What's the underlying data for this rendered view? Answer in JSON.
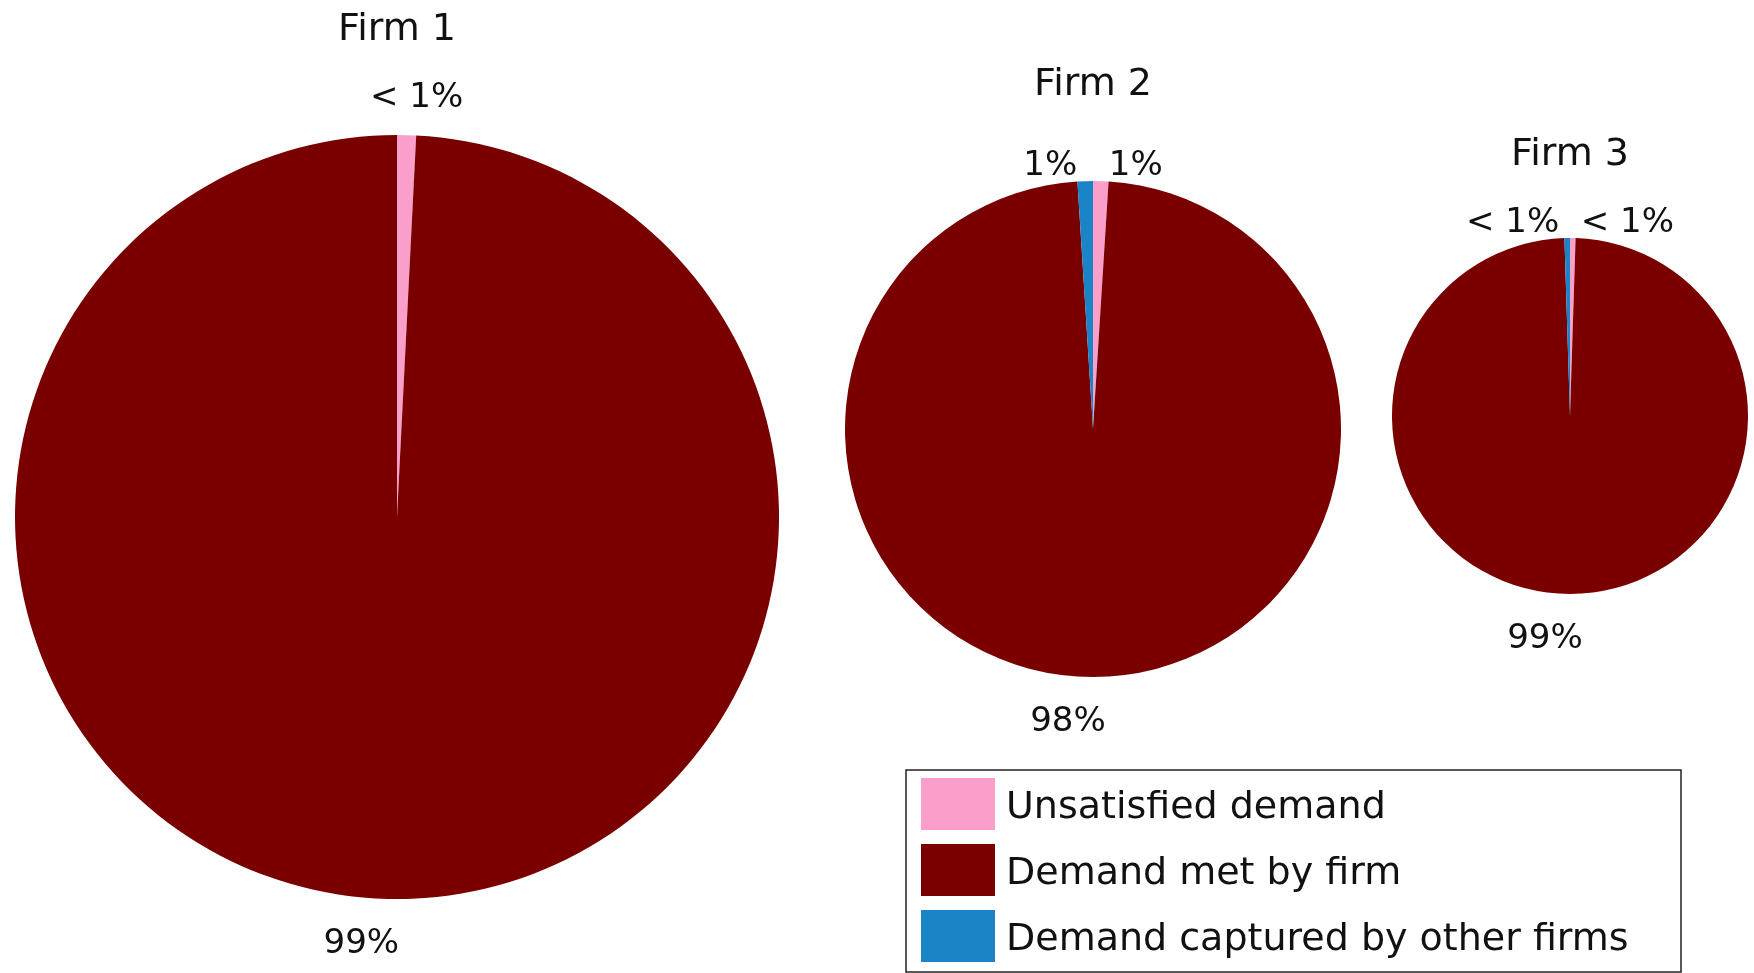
{
  "chart_data": [
    {
      "type": "pie",
      "title": "Firm 1",
      "categories": [
        null,
        null
      ],
      "values": [
        0.8,
        99.2
      ],
      "colors": [
        "#f99fc9",
        "#7a0000"
      ],
      "value_labels": [
        "< 1%",
        "99%"
      ]
    },
    {
      "type": "pie",
      "title": "Firm 2",
      "categories": [
        "Unsatisfied demand",
        "Demand met by firm",
        "Demand captured by other firms"
      ],
      "values": [
        1,
        98,
        1
      ],
      "colors": [
        "#f99fc9",
        "#7a0000",
        "#1b84c6"
      ],
      "value_labels": [
        "1%",
        "98%",
        "1%"
      ],
      "legend": "bottom"
    },
    {
      "type": "pie",
      "title": "Firm 3",
      "categories": [
        null,
        null,
        null
      ],
      "values": [
        0.5,
        99,
        0.5
      ],
      "colors": [
        "#f99fc9",
        "#7a0000",
        "#1b84c6"
      ],
      "value_labels": [
        "< 1%",
        "99%",
        "< 1%"
      ]
    }
  ]
}
